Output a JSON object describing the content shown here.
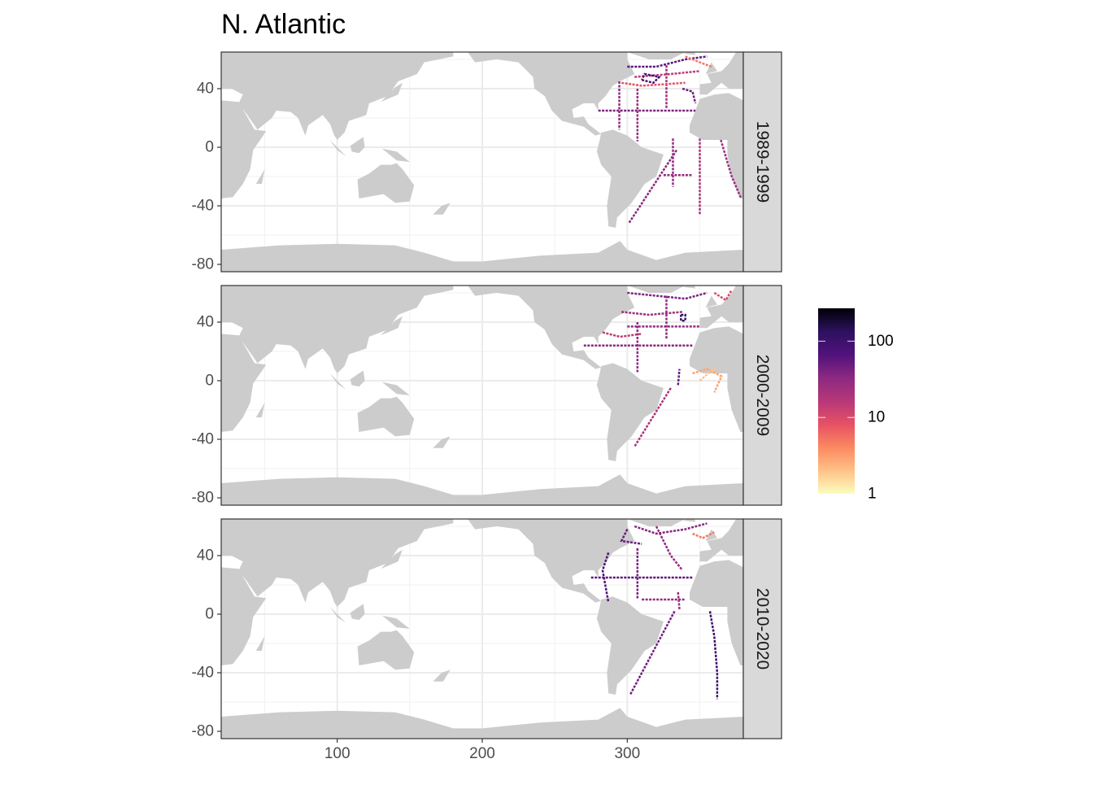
{
  "chart_data": {
    "type": "heatmap",
    "title": "N. Atlantic",
    "xlabel": "",
    "ylabel": "",
    "xlim": [
      20,
      380
    ],
    "ylim": [
      -85,
      65
    ],
    "x_ticks": [
      100,
      200,
      300
    ],
    "x_tick_labels": [
      "100",
      "200",
      "300"
    ],
    "y_ticks": [
      40,
      0,
      -40,
      -80
    ],
    "y_tick_labels": [
      "40",
      "0",
      "-40",
      "-80"
    ],
    "grid": true,
    "legend": {
      "position": "right",
      "scale": "log10",
      "range": [
        1,
        270
      ],
      "ticks": [
        100,
        10,
        1
      ],
      "tick_labels": [
        "100",
        "10",
        "1"
      ],
      "palette": [
        "#FCFDBF",
        "#FEC287",
        "#FC8961",
        "#E65164",
        "#B73779",
        "#8C2981",
        "#51127C",
        "#2D1160",
        "#000004"
      ]
    },
    "land_color": "#CCCCCC",
    "facets": [
      {
        "label": "1989-1999",
        "tracks": [
          {
            "count": 40,
            "points": [
              [
                280,
                25
              ],
              [
                347,
                25
              ]
            ]
          },
          {
            "count": 30,
            "points": [
              [
                294.5,
                45
              ],
              [
                294.5,
                12
              ]
            ]
          },
          {
            "count": 25,
            "points": [
              [
                307,
                40
              ],
              [
                307,
                4
              ]
            ]
          },
          {
            "count": 35,
            "points": [
              [
                334,
                -2
              ],
              [
                301,
                -52
              ]
            ]
          },
          {
            "count": 20,
            "points": [
              [
                350,
                6
              ],
              [
                350,
                -46
              ]
            ]
          },
          {
            "count": 25,
            "points": [
              [
                364.5,
                5
              ],
              [
                372,
                -20
              ],
              [
                378.5,
                -35
              ]
            ]
          },
          {
            "count": 30,
            "points": [
              [
                331.5,
                6
              ],
              [
                331.5,
                -27
              ]
            ]
          },
          {
            "count": 30,
            "points": [
              [
                325,
                -19
              ],
              [
                345,
                -19
              ]
            ]
          },
          {
            "count": 25,
            "points": [
              [
                327,
                56
              ],
              [
                327,
                26
              ]
            ]
          },
          {
            "count": 60,
            "points": [
              [
                300,
                55
              ],
              [
                320,
                55
              ],
              [
                340,
                60
              ],
              [
                355,
                62
              ]
            ]
          },
          {
            "count": 15,
            "points": [
              [
                305,
                48
              ],
              [
                330,
                50
              ],
              [
                350,
                52
              ]
            ]
          },
          {
            "count": 80,
            "points": [
              [
                310,
                46
              ],
              [
                318,
                44
              ],
              [
                322,
                48
              ],
              [
                312,
                50
              ],
              [
                310,
                46
              ]
            ]
          },
          {
            "count": 8,
            "points": [
              [
                296,
                44
              ],
              [
                310,
                42
              ],
              [
                340,
                44
              ]
            ]
          },
          {
            "count": 5,
            "points": [
              [
                340,
                62
              ],
              [
                350,
                58
              ],
              [
                358,
                55
              ]
            ]
          },
          {
            "count": 45,
            "points": [
              [
                338,
                40
              ],
              [
                345,
                38
              ],
              [
                347,
                30
              ]
            ]
          }
        ]
      },
      {
        "label": "2000-2009",
        "tracks": [
          {
            "count": 30,
            "points": [
              [
                300,
                37
              ],
              [
                350,
                37
              ]
            ]
          },
          {
            "count": 35,
            "points": [
              [
                270,
                24
              ],
              [
                345,
                24
              ]
            ]
          },
          {
            "count": 30,
            "points": [
              [
                307,
                40
              ],
              [
                307,
                5
              ]
            ]
          },
          {
            "count": 20,
            "points": [
              [
                330,
                -5
              ],
              [
                305,
                -45
              ]
            ]
          },
          {
            "count": 3,
            "points": [
              [
                345,
                5
              ],
              [
                355,
                8
              ],
              [
                365,
                3
              ],
              [
                360,
                -8
              ]
            ]
          },
          {
            "count": 2,
            "points": [
              [
                350,
                0
              ],
              [
                362,
                10
              ]
            ]
          },
          {
            "count": 50,
            "points": [
              [
                335,
                -3
              ],
              [
                336,
                8
              ]
            ]
          },
          {
            "count": 40,
            "points": [
              [
                300,
                60
              ],
              [
                320,
                58
              ],
              [
                340,
                56
              ],
              [
                355,
                60
              ]
            ]
          },
          {
            "count": 120,
            "points": [
              [
                337,
                45
              ],
              [
                340,
                45
              ],
              [
                340,
                41
              ],
              [
                337,
                41
              ],
              [
                337,
                45
              ]
            ]
          },
          {
            "count": 25,
            "points": [
              [
                296,
                47
              ],
              [
                315,
                45
              ],
              [
                338,
                47
              ]
            ]
          },
          {
            "count": 10,
            "points": [
              [
                360,
                60
              ],
              [
                368,
                55
              ],
              [
                372,
                62
              ]
            ]
          },
          {
            "count": 30,
            "points": [
              [
                327,
                58
              ],
              [
                327,
                28
              ]
            ]
          },
          {
            "count": 15,
            "points": [
              [
                283,
                33
              ],
              [
                295,
                30
              ],
              [
                310,
                32
              ]
            ]
          }
        ]
      },
      {
        "label": "2010-2020",
        "tracks": [
          {
            "count": 70,
            "points": [
              [
                287,
                42
              ],
              [
                283,
                30
              ],
              [
                287,
                8
              ]
            ]
          },
          {
            "count": 60,
            "points": [
              [
                275,
                25
              ],
              [
                345,
                25
              ]
            ]
          },
          {
            "count": 40,
            "points": [
              [
                307,
                45
              ],
              [
                307,
                10
              ]
            ]
          },
          {
            "count": 45,
            "points": [
              [
                332.6,
                2
              ],
              [
                302,
                -55
              ]
            ]
          },
          {
            "count": 100,
            "points": [
              [
                357,
                2
              ],
              [
                360,
                -15
              ],
              [
                362,
                -40
              ],
              [
                362,
                -58
              ]
            ]
          },
          {
            "count": 30,
            "points": [
              [
                310,
                10
              ],
              [
                340,
                10
              ]
            ]
          },
          {
            "count": 35,
            "points": [
              [
                305,
                60
              ],
              [
                320,
                55
              ],
              [
                340,
                58
              ],
              [
                355,
                62
              ]
            ]
          },
          {
            "count": 30,
            "points": [
              [
                320,
                60
              ],
              [
                330,
                40
              ],
              [
                338,
                30
              ]
            ]
          },
          {
            "count": 50,
            "points": [
              [
                300,
                58
              ],
              [
                296,
                50
              ],
              [
                310,
                48
              ]
            ]
          },
          {
            "count": 5,
            "points": [
              [
                345,
                55
              ],
              [
                352,
                52
              ],
              [
                360,
                56
              ]
            ]
          },
          {
            "count": 25,
            "points": [
              [
                335,
                15
              ],
              [
                336,
                3
              ]
            ]
          }
        ]
      }
    ]
  }
}
